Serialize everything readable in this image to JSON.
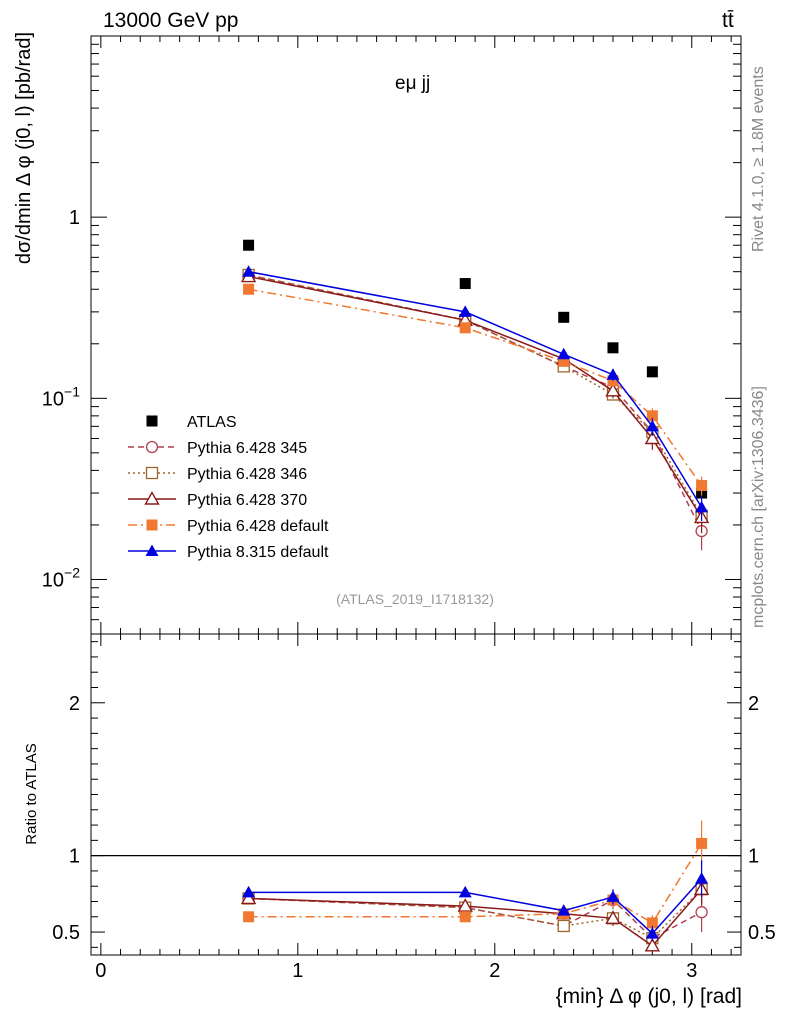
{
  "header": {
    "energy": "13000 GeV pp",
    "process": "tt̄"
  },
  "side_labels": {
    "rivet": "Rivet 4.1.0, ≥ 1.8M events",
    "mcplots": "mcplots.cern.ch [arXiv:1306.3436]"
  },
  "colors": {
    "atlas": "#000000",
    "p345": "#b04050",
    "p346": "#a0642a",
    "p370": "#8b1a1a",
    "p6def": "#f07830",
    "p8def": "#0000e0"
  },
  "chart_data": [
    {
      "type": "scatter",
      "panel": "main",
      "title": "eμ jj",
      "ylabel": "dσ/dmin Δ φ (j0, l) [pb/rad]",
      "yscale": "log",
      "ylim": [
        0.005,
        10
      ],
      "xlim": [
        -0.05,
        3.25
      ],
      "y_ticks": [
        "10^-2",
        "10^-1",
        "1"
      ],
      "watermark": "(ATLAS_2019_I1718132)",
      "x": [
        0.75,
        1.85,
        2.35,
        2.6,
        2.8,
        3.05
      ],
      "series": [
        {
          "name": "ATLAS",
          "key": "atlas",
          "marker": "square-filled",
          "line": "none",
          "values": [
            0.7,
            0.43,
            0.28,
            0.19,
            0.14,
            0.03
          ]
        },
        {
          "name": "Pythia 6.428 345",
          "key": "p345",
          "marker": "circle-open",
          "line": "dashed",
          "values": [
            0.48,
            0.27,
            0.15,
            0.115,
            0.065,
            0.0185
          ],
          "errors": [
            0.01,
            0.01,
            0.007,
            0.008,
            0.008,
            0.004
          ]
        },
        {
          "name": "Pythia 6.428 346",
          "key": "p346",
          "marker": "square-open",
          "line": "dotted",
          "values": [
            0.48,
            0.27,
            0.15,
            0.105,
            0.065,
            0.0225
          ]
        },
        {
          "name": "Pythia 6.428 370",
          "key": "p370",
          "marker": "triangle-open",
          "line": "solid",
          "values": [
            0.47,
            0.27,
            0.165,
            0.11,
            0.06,
            0.022
          ],
          "errors": [
            0.01,
            0.01,
            0.007,
            0.01,
            0.008,
            0.004
          ]
        },
        {
          "name": "Pythia 6.428 default",
          "key": "p6def",
          "marker": "square-filled",
          "line": "dashdot",
          "values": [
            0.4,
            0.245,
            0.16,
            0.125,
            0.08,
            0.033
          ],
          "errors": [
            0.01,
            0.01,
            0.007,
            0.008,
            0.008,
            0.004
          ]
        },
        {
          "name": "Pythia 8.315 default",
          "key": "p8def",
          "marker": "triangle-filled",
          "line": "solid",
          "values": [
            0.5,
            0.3,
            0.175,
            0.135,
            0.07,
            0.025
          ],
          "errors": [
            0.01,
            0.01,
            0.007,
            0.01,
            0.008,
            0.004
          ]
        }
      ]
    },
    {
      "type": "line",
      "panel": "ratio",
      "ylabel": "Ratio to ATLAS",
      "ylim": [
        0.35,
        2.45
      ],
      "xlim": [
        -0.05,
        3.25
      ],
      "xlabel": "{min} Δ φ (j0, l) [rad]",
      "x_ticks": [
        "0",
        "1",
        "2",
        "3"
      ],
      "y_ticks": [
        "0.5",
        "1",
        "2"
      ],
      "reference": 1,
      "x": [
        0.75,
        1.85,
        2.35,
        2.6,
        2.8,
        3.05
      ],
      "series": [
        {
          "name": "Pythia 6.428 345",
          "key": "p345",
          "values": [
            0.72,
            0.66,
            0.54,
            0.71,
            0.46,
            0.63
          ],
          "errors": [
            0.01,
            0.02,
            0.03,
            0.06,
            0.05,
            0.13
          ]
        },
        {
          "name": "Pythia 6.428 346",
          "key": "p346",
          "values": [
            0.72,
            0.66,
            0.54,
            0.59,
            0.46,
            0.78
          ],
          "errors": [
            0.01,
            0.02,
            0.02,
            0.04,
            0.04,
            0.1
          ]
        },
        {
          "name": "Pythia 6.428 370",
          "key": "p370",
          "values": [
            0.72,
            0.67,
            0.62,
            0.59,
            0.41,
            0.78
          ],
          "errors": [
            0.01,
            0.02,
            0.03,
            0.05,
            0.05,
            0.1
          ]
        },
        {
          "name": "Pythia 6.428 default",
          "key": "p6def",
          "values": [
            0.6,
            0.6,
            0.62,
            0.71,
            0.56,
            1.08
          ],
          "errors": [
            0.01,
            0.02,
            0.03,
            0.05,
            0.05,
            0.15
          ]
        },
        {
          "name": "Pythia 8.315 default",
          "key": "p8def",
          "values": [
            0.76,
            0.76,
            0.64,
            0.73,
            0.49,
            0.85
          ],
          "errors": [
            0.01,
            0.02,
            0.03,
            0.05,
            0.05,
            0.12
          ]
        }
      ]
    }
  ]
}
